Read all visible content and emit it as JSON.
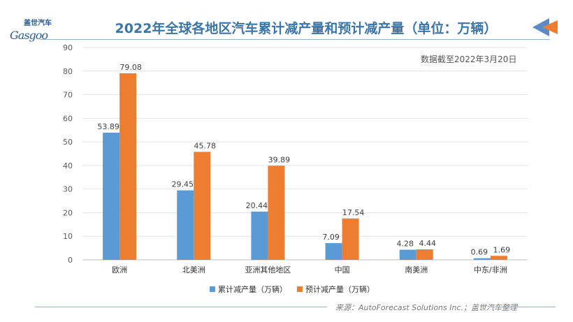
{
  "logo": {
    "cn": "盖世汽车",
    "en": "Gasgoo"
  },
  "chart_data": {
    "type": "bar",
    "title": "2022年全球各地区汽车累计减产量和预计减产量（单位：万辆）",
    "subtitle": "数据截至2022年3月20日",
    "categories": [
      "欧洲",
      "北美洲",
      "亚洲其他地区",
      "中国",
      "南美洲",
      "中东/非洲"
    ],
    "series": [
      {
        "name": "累计减产量（万辆）",
        "color": "#5B9BD5",
        "values": [
          53.89,
          29.45,
          20.44,
          7.09,
          4.28,
          0.69
        ]
      },
      {
        "name": "预计减产量（万辆）",
        "color": "#ED7D31",
        "values": [
          79.08,
          45.78,
          39.89,
          17.54,
          4.44,
          1.69
        ]
      }
    ],
    "ylim": [
      0,
      90
    ],
    "yticks": [
      0,
      10,
      20,
      30,
      40,
      50,
      60,
      70,
      80,
      90
    ],
    "grid": true,
    "legend": "bottom"
  },
  "source": "来源：AutoForecast Solutions Inc.；盖世汽车整理"
}
